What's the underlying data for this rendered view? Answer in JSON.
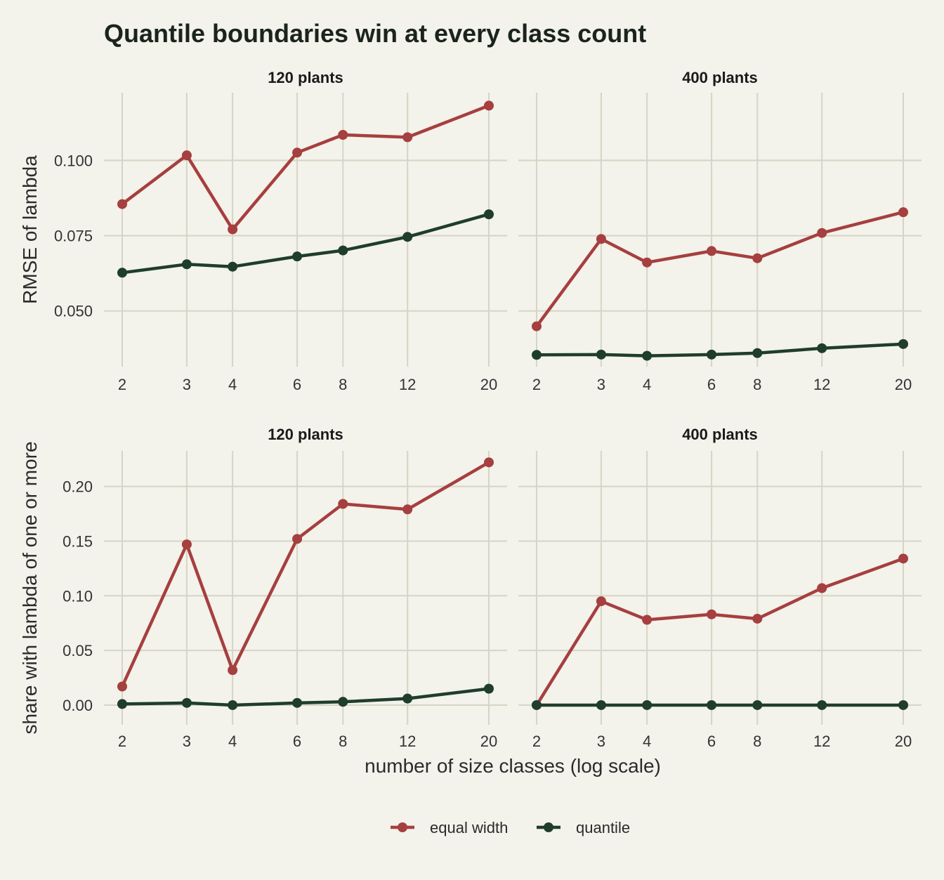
{
  "chart_data": {
    "type": "line",
    "title": "Quantile boundaries win at every class count",
    "xlabel": "number of size classes (log scale)",
    "x_scale": "log",
    "x": [
      2,
      3,
      4,
      6,
      8,
      12,
      20
    ],
    "x_tick_labels": [
      "2",
      "3",
      "4",
      "6",
      "8",
      "12",
      "20"
    ],
    "legend_position": "bottom",
    "grid": true,
    "colors": {
      "equal width": "#a63f3f",
      "quantile": "#1f3d2b"
    },
    "rows": [
      {
        "ylabel": "RMSE of lambda",
        "ylim": [
          0.0315,
          0.1225
        ],
        "y_ticks": [
          0.05,
          0.075,
          0.1
        ],
        "y_tick_labels": [
          "0.050",
          "0.075",
          "0.100"
        ],
        "panels": [
          {
            "strip": "120 plants",
            "series": [
              {
                "name": "equal width",
                "values": [
                  0.0855,
                  0.1017,
                  0.0771,
                  0.1026,
                  0.1085,
                  0.1077,
                  0.1182
                ]
              },
              {
                "name": "quantile",
                "values": [
                  0.0627,
                  0.0655,
                  0.0647,
                  0.0681,
                  0.0701,
                  0.0746,
                  0.0821
                ]
              }
            ]
          },
          {
            "strip": "400 plants",
            "series": [
              {
                "name": "equal width",
                "values": [
                  0.0449,
                  0.0739,
                  0.0661,
                  0.0699,
                  0.0675,
                  0.0759,
                  0.0828
                ]
              },
              {
                "name": "quantile",
                "values": [
                  0.0354,
                  0.0355,
                  0.0351,
                  0.0355,
                  0.036,
                  0.0376,
                  0.039
                ]
              }
            ]
          }
        ]
      },
      {
        "ylabel": "share with lambda of one or more",
        "ylim": [
          -0.018,
          0.2325
        ],
        "y_ticks": [
          0,
          0.05,
          0.1,
          0.15,
          0.2
        ],
        "y_tick_labels": [
          "0.00",
          "0.05",
          "0.10",
          "0.15",
          "0.20"
        ],
        "panels": [
          {
            "strip": "120 plants",
            "series": [
              {
                "name": "equal width",
                "values": [
                  0.017,
                  0.147,
                  0.032,
                  0.152,
                  0.184,
                  0.179,
                  0.222
                ]
              },
              {
                "name": "quantile",
                "values": [
                  0.001,
                  0.002,
                  0.0,
                  0.002,
                  0.003,
                  0.006,
                  0.015
                ]
              }
            ]
          },
          {
            "strip": "400 plants",
            "series": [
              {
                "name": "equal width",
                "values": [
                  0.0,
                  0.095,
                  0.078,
                  0.083,
                  0.079,
                  0.107,
                  0.134
                ]
              },
              {
                "name": "quantile",
                "values": [
                  0.0,
                  0.0,
                  0.0,
                  0.0,
                  0.0,
                  0.0,
                  0.0
                ]
              }
            ]
          }
        ]
      }
    ],
    "legend": [
      {
        "name": "equal width",
        "label": "equal width"
      },
      {
        "name": "quantile",
        "label": "quantile"
      }
    ]
  }
}
